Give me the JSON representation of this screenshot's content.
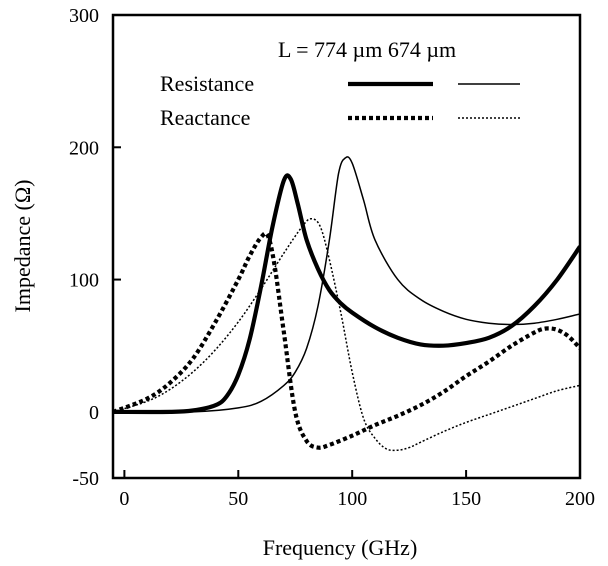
{
  "chart_data": {
    "type": "line",
    "title": "",
    "xlabel": "Frequency (GHz)",
    "ylabel": "Impedance (Ω)",
    "xlim": [
      -5,
      200
    ],
    "ylim": [
      -50,
      300
    ],
    "x_ticks": [
      0,
      50,
      100,
      150,
      200
    ],
    "y_ticks": [
      300,
      200,
      100,
      0,
      -50
    ],
    "grid": false,
    "legend": {
      "placement": "top-right",
      "header": "L = 774 µm  674 µm",
      "rows": [
        "Resistance",
        "Reactance"
      ]
    },
    "series": [
      {
        "row": "Resistance",
        "length": "774 µm",
        "color": "#000000",
        "style": "thick-solid",
        "points": [
          [
            -5,
            0
          ],
          [
            20,
            0
          ],
          [
            30,
            1
          ],
          [
            40,
            5
          ],
          [
            45,
            12
          ],
          [
            50,
            28
          ],
          [
            55,
            55
          ],
          [
            60,
            95
          ],
          [
            65,
            140
          ],
          [
            70,
            175
          ],
          [
            73,
            176
          ],
          [
            76,
            158
          ],
          [
            80,
            130
          ],
          [
            85,
            108
          ],
          [
            90,
            92
          ],
          [
            95,
            82
          ],
          [
            100,
            75
          ],
          [
            110,
            64
          ],
          [
            120,
            56
          ],
          [
            130,
            51
          ],
          [
            140,
            50
          ],
          [
            150,
            52
          ],
          [
            160,
            56
          ],
          [
            170,
            65
          ],
          [
            180,
            80
          ],
          [
            190,
            100
          ],
          [
            200,
            125
          ]
        ]
      },
      {
        "row": "Resistance",
        "length": "674 µm",
        "color": "#000000",
        "style": "thin-solid",
        "points": [
          [
            -5,
            0
          ],
          [
            30,
            0
          ],
          [
            50,
            3
          ],
          [
            60,
            8
          ],
          [
            70,
            20
          ],
          [
            75,
            30
          ],
          [
            80,
            48
          ],
          [
            85,
            80
          ],
          [
            90,
            130
          ],
          [
            94,
            180
          ],
          [
            97,
            192
          ],
          [
            100,
            188
          ],
          [
            105,
            160
          ],
          [
            110,
            130
          ],
          [
            120,
            100
          ],
          [
            130,
            85
          ],
          [
            140,
            76
          ],
          [
            150,
            70
          ],
          [
            160,
            67
          ],
          [
            170,
            66
          ],
          [
            180,
            67
          ],
          [
            190,
            70
          ],
          [
            200,
            74
          ]
        ]
      },
      {
        "row": "Reactance",
        "length": "774 µm",
        "color": "#000000",
        "style": "thick-dotted",
        "points": [
          [
            -5,
            0
          ],
          [
            10,
            10
          ],
          [
            20,
            22
          ],
          [
            30,
            40
          ],
          [
            40,
            68
          ],
          [
            50,
            100
          ],
          [
            55,
            118
          ],
          [
            60,
            132
          ],
          [
            63,
            133
          ],
          [
            66,
            110
          ],
          [
            70,
            60
          ],
          [
            75,
            0
          ],
          [
            80,
            -22
          ],
          [
            85,
            -27
          ],
          [
            90,
            -25
          ],
          [
            100,
            -18
          ],
          [
            110,
            -10
          ],
          [
            120,
            -3
          ],
          [
            130,
            5
          ],
          [
            140,
            15
          ],
          [
            150,
            27
          ],
          [
            160,
            38
          ],
          [
            170,
            50
          ],
          [
            180,
            60
          ],
          [
            185,
            63
          ],
          [
            190,
            62
          ],
          [
            195,
            57
          ],
          [
            200,
            48
          ]
        ]
      },
      {
        "row": "Reactance",
        "length": "674 µm",
        "color": "#000000",
        "style": "thin-dotted",
        "points": [
          [
            -5,
            0
          ],
          [
            10,
            8
          ],
          [
            20,
            17
          ],
          [
            30,
            30
          ],
          [
            40,
            47
          ],
          [
            50,
            68
          ],
          [
            60,
            93
          ],
          [
            70,
            120
          ],
          [
            78,
            140
          ],
          [
            82,
            146
          ],
          [
            86,
            140
          ],
          [
            90,
            115
          ],
          [
            95,
            75
          ],
          [
            100,
            30
          ],
          [
            105,
            -5
          ],
          [
            110,
            -20
          ],
          [
            115,
            -28
          ],
          [
            120,
            -29
          ],
          [
            125,
            -27
          ],
          [
            130,
            -23
          ],
          [
            140,
            -15
          ],
          [
            150,
            -8
          ],
          [
            160,
            -2
          ],
          [
            170,
            4
          ],
          [
            180,
            10
          ],
          [
            190,
            16
          ],
          [
            200,
            20
          ]
        ]
      }
    ]
  }
}
